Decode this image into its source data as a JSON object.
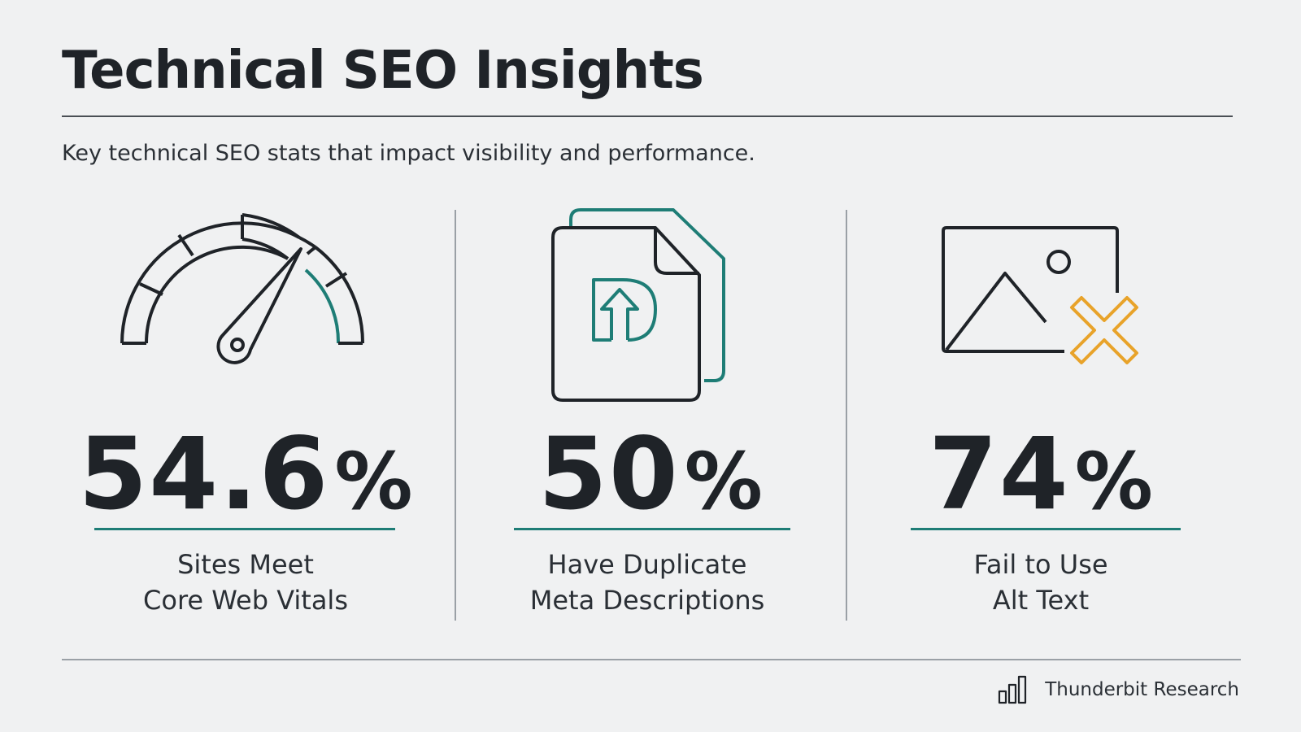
{
  "header": {
    "title": "Technical SEO Insights",
    "subtitle": "Key technical SEO stats that impact visibility and performance."
  },
  "stats": [
    {
      "value": "54.6",
      "unit": "%",
      "label_line1": "Sites Meet",
      "label_line2": "Core Web Vitals",
      "icon": "speedometer-gauge-icon"
    },
    {
      "value": "50",
      "unit": "%",
      "label_line1": "Have Duplicate",
      "label_line2": "Meta Descriptions",
      "icon": "duplicate-document-icon"
    },
    {
      "value": "74",
      "unit": "%",
      "label_line1": "Fail to Use",
      "label_line2": "Alt Text",
      "icon": "image-missing-alt-icon"
    }
  ],
  "footer": {
    "brand": "Thunderbit Research",
    "icon": "bar-chart-icon"
  },
  "colors": {
    "background": "#f0f1f2",
    "text": "#1f2328",
    "accent_teal": "#1e7d76",
    "accent_orange": "#e8a32a",
    "divider": "#9aa0a6"
  }
}
